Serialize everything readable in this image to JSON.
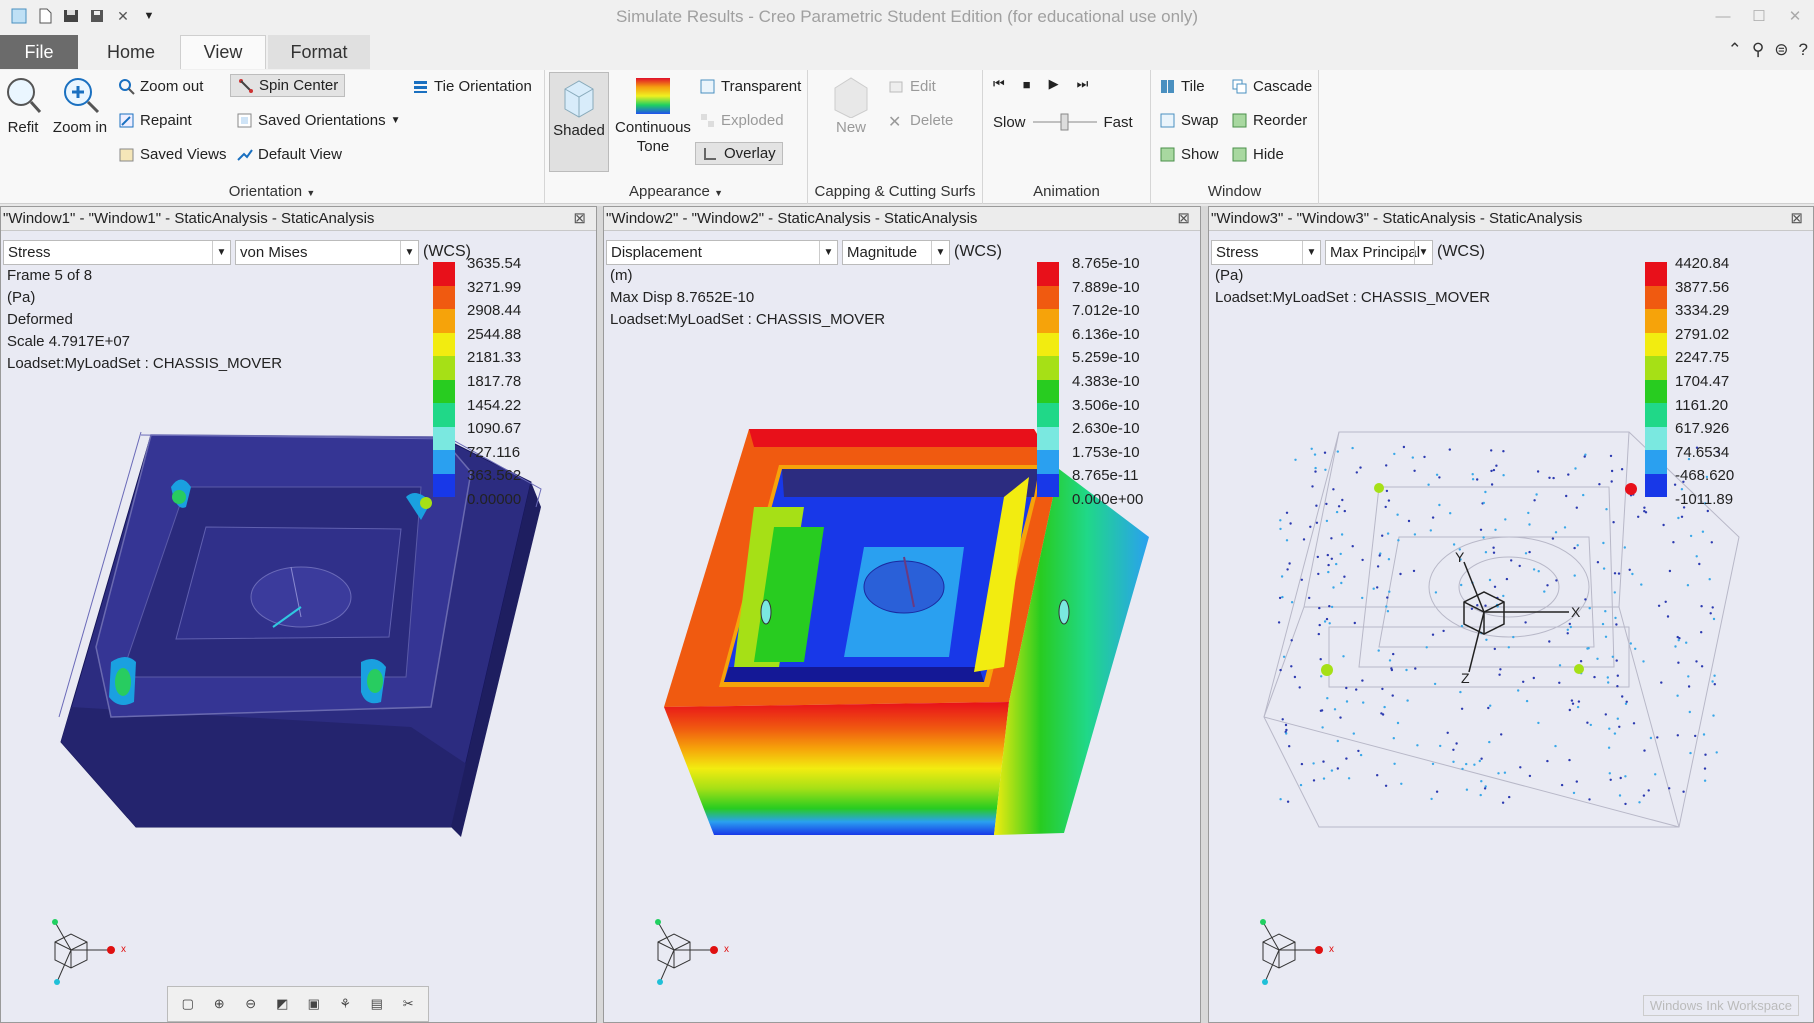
{
  "app": {
    "title": "Simulate Results - Creo Parametric Student Edition (for educational use only)"
  },
  "tabs": [
    "File",
    "Home",
    "View",
    "Format"
  ],
  "ribbon": {
    "orientation": {
      "refit": "Refit",
      "zoom_in": "Zoom in",
      "zoom_out": "Zoom out",
      "repaint": "Repaint",
      "saved_views": "Saved Views",
      "spin_center": "Spin Center",
      "saved_orientations": "Saved Orientations",
      "default_view": "Default View",
      "tie_orientation": "Tie Orientation",
      "label": "Orientation"
    },
    "appearance": {
      "shaded": "Shaded",
      "continuous_tone_1": "Continuous",
      "continuous_tone_2": "Tone",
      "transparent": "Transparent",
      "exploded": "Exploded",
      "overlay": "Overlay",
      "label": "Appearance"
    },
    "capping": {
      "new": "New",
      "edit": "Edit",
      "delete": "Delete",
      "label": "Capping & Cutting Surfs"
    },
    "animation": {
      "slow": "Slow",
      "fast": "Fast",
      "label": "Animation"
    },
    "window": {
      "tile": "Tile",
      "cascade": "Cascade",
      "swap": "Swap",
      "reorder": "Reorder",
      "show": "Show",
      "hide": "Hide",
      "label": "Window"
    }
  },
  "panes": [
    {
      "title": "\"Window1\" - \"Window1\" - StaticAnalysis - StaticAnalysis",
      "dd1": "Stress",
      "dd2": "von Mises",
      "wcs": "(WCS)",
      "info": [
        "Frame 5 of 8",
        "(Pa)",
        "Deformed",
        "Scale  4.7917E+07",
        "Loadset:MyLoadSet :   CHASSIS_MOVER"
      ],
      "legend": [
        "3635.54",
        "3271.99",
        "2908.44",
        "2544.88",
        "2181.33",
        "1817.78",
        "1454.22",
        "1090.67",
        "727.116",
        "363.562",
        "0.00000"
      ]
    },
    {
      "title": "\"Window2\" - \"Window2\" - StaticAnalysis - StaticAnalysis",
      "dd1": "Displacement",
      "dd2": "Magnitude",
      "wcs": "(WCS)",
      "info": [
        "(m)",
        "Max Disp  8.7652E-10",
        "Loadset:MyLoadSet :   CHASSIS_MOVER"
      ],
      "legend": [
        "8.765e-10",
        "7.889e-10",
        "7.012e-10",
        "6.136e-10",
        "5.259e-10",
        "4.383e-10",
        "3.506e-10",
        "2.630e-10",
        "1.753e-10",
        "8.765e-11",
        "0.000e+00"
      ]
    },
    {
      "title": "\"Window3\" - \"Window3\" - StaticAnalysis - StaticAnalysis",
      "dd1": "Stress",
      "dd2": "Max Principal",
      "wcs": "(WCS)",
      "info": [
        "(Pa)",
        "Loadset:MyLoadSet :   CHASSIS_MOVER"
      ],
      "legend": [
        "4420.84",
        "3877.56",
        "3334.29",
        "2791.02",
        "2247.75",
        "1704.47",
        "1161.20",
        "617.926",
        "74.6534",
        "-468.620",
        "-1011.89"
      ]
    }
  ],
  "legend_colors": [
    "#e8101a",
    "#f05a10",
    "#f6a30a",
    "#f2ec10",
    "#a6e016",
    "#28cc20",
    "#20d888",
    "#7ae8e0",
    "#2aa0f0",
    "#1838e8",
    "#141896"
  ],
  "ink": "Windows Ink Workspace"
}
